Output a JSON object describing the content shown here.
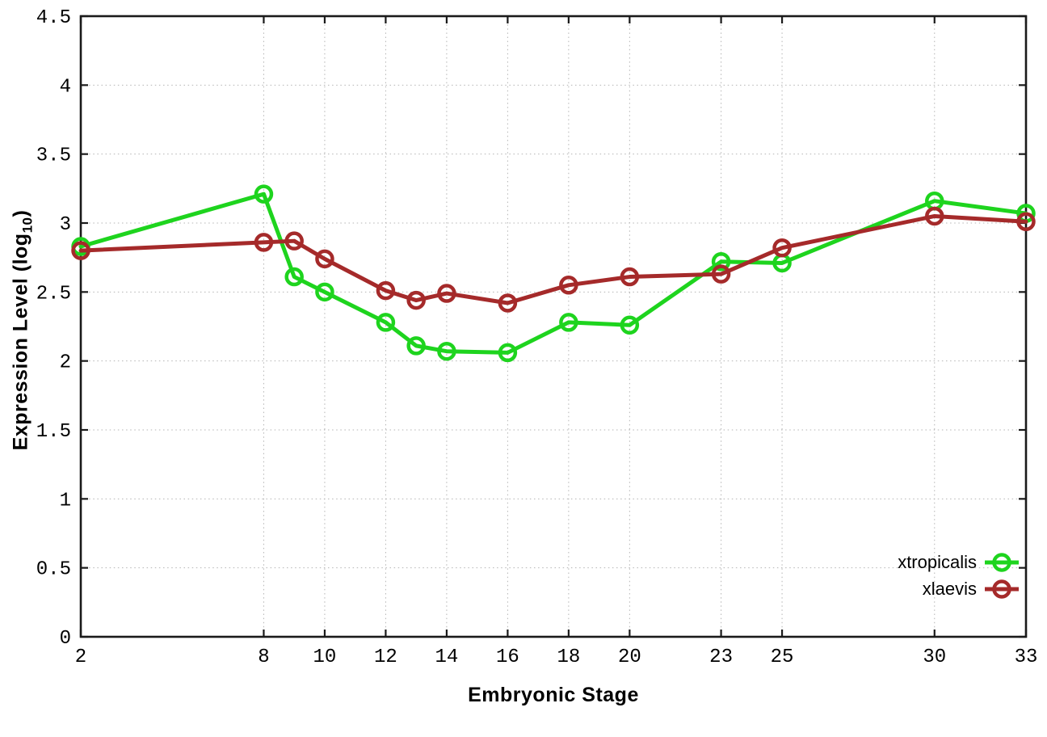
{
  "chart_data": {
    "type": "line",
    "title": "",
    "xlabel": "Embryonic Stage",
    "ylabel": "Expression Level (log10)",
    "ylabel_rich": {
      "prefix": "Expression Level (log",
      "sub": "10",
      "suffix": ")"
    },
    "xlim": [
      2,
      33
    ],
    "ylim": [
      0,
      4.5
    ],
    "grid": true,
    "legend_position": "bottom-right-inside",
    "xticks": [
      2,
      8,
      10,
      12,
      14,
      16,
      18,
      20,
      23,
      25,
      30,
      33
    ],
    "xtick_labels": [
      "2",
      "8",
      "10",
      "12",
      "14",
      "16",
      "18",
      "20",
      "23",
      "25",
      "30",
      "33"
    ],
    "yticks": [
      0,
      0.5,
      1,
      1.5,
      2,
      2.5,
      3,
      3.5,
      4,
      4.5
    ],
    "ytick_labels": [
      "0",
      "0.5",
      "1",
      "1.5",
      "2",
      "2.5",
      "3",
      "3.5",
      "4",
      "4.5"
    ],
    "x": [
      2,
      8,
      9,
      10,
      12,
      13,
      14,
      16,
      18,
      20,
      23,
      25,
      30,
      33
    ],
    "series": [
      {
        "name": "xtropicalis",
        "color": "#1ed41e",
        "marker": "open-circle",
        "values": [
          2.83,
          3.21,
          2.61,
          2.5,
          2.28,
          2.11,
          2.07,
          2.06,
          2.28,
          2.26,
          2.72,
          2.71,
          3.16,
          3.07
        ]
      },
      {
        "name": "xlaevis",
        "color": "#a52a2a",
        "marker": "open-circle",
        "values": [
          2.8,
          2.86,
          2.87,
          2.74,
          2.51,
          2.44,
          2.49,
          2.42,
          2.55,
          2.61,
          2.63,
          2.82,
          3.05,
          3.01
        ]
      }
    ],
    "colors": {
      "axis": "#1a1a1a",
      "grid": "#b4b4b4",
      "text": "#000000",
      "background": "#ffffff"
    }
  }
}
